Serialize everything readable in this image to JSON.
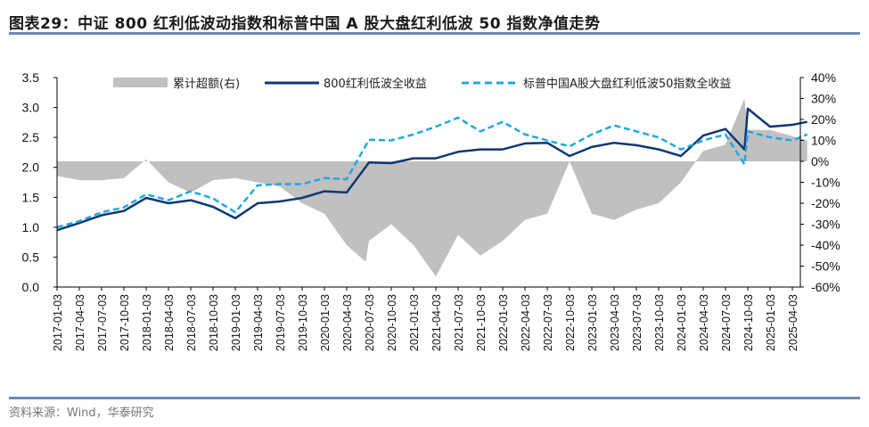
{
  "title": "图表29：中证 800 红利低波动指数和标普中国 A 股大盘红利低波 50 指数净值走势",
  "source": "资料来源：Wind，华泰研究",
  "colors": {
    "excess": "#c0c0c0",
    "csi800": "#0d3874",
    "sp50": "#1fa8e6",
    "rule": "#6a8ab3"
  },
  "chart_data": {
    "type": "line",
    "title": "",
    "legend_position": "top",
    "y_left": {
      "lim": [
        0,
        3.5
      ],
      "ticks": [
        "0.0",
        "0.5",
        "1.0",
        "1.5",
        "2.0",
        "2.5",
        "3.0",
        "3.5"
      ]
    },
    "y_right": {
      "lim": [
        -60,
        40
      ],
      "ticks": [
        "-60%",
        "-50%",
        "-40%",
        "-30%",
        "-20%",
        "-10%",
        "0%",
        "10%",
        "20%",
        "30%",
        "40%"
      ]
    },
    "x_ticks": [
      "2017-01-03",
      "2017-04-03",
      "2017-07-03",
      "2017-10-03",
      "2018-01-03",
      "2018-04-03",
      "2018-07-03",
      "2018-10-03",
      "2019-01-03",
      "2019-04-03",
      "2019-07-03",
      "2019-10-03",
      "2020-01-03",
      "2020-04-03",
      "2020-07-03",
      "2020-10-03",
      "2021-01-03",
      "2021-04-03",
      "2021-07-03",
      "2021-10-03",
      "2022-01-03",
      "2022-04-03",
      "2022-07-03",
      "2022-10-03",
      "2023-01-03",
      "2023-04-03",
      "2023-07-03",
      "2023-10-03",
      "2024-01-03",
      "2024-04-03",
      "2024-07-03",
      "2024-10-03",
      "2025-01-03",
      "2025-04-03"
    ],
    "series": [
      {
        "name": "累计超额(右)",
        "type": "area",
        "axis": "right",
        "x": [
          "2017-01-03",
          "2017-04-03",
          "2017-07-03",
          "2017-10-03",
          "2018-01-03",
          "2018-04-03",
          "2018-07-03",
          "2018-10-03",
          "2019-01-03",
          "2019-04-03",
          "2019-07-03",
          "2019-10-03",
          "2020-01-03",
          "2020-04-03",
          "2020-06-20",
          "2020-07-03",
          "2020-10-03",
          "2021-01-03",
          "2021-04-03",
          "2021-07-03",
          "2021-10-03",
          "2022-01-03",
          "2022-04-03",
          "2022-07-03",
          "2022-10-03",
          "2023-01-03",
          "2023-04-03",
          "2023-07-03",
          "2023-10-03",
          "2024-01-03",
          "2024-04-03",
          "2024-07-03",
          "2024-09-20",
          "2024-10-03",
          "2025-01-03",
          "2025-04-03",
          "2025-06-03"
        ],
        "values": [
          -7,
          -9,
          -9,
          -8,
          1,
          -10,
          -15,
          -9,
          -8,
          -10,
          -12,
          -20,
          -25,
          -40,
          -48,
          -38,
          -30,
          -40,
          -55,
          -35,
          -45,
          -38,
          -28,
          -25,
          0,
          -25,
          -28,
          -23,
          -20,
          -10,
          5,
          8,
          30,
          15,
          15,
          12,
          10
        ]
      },
      {
        "name": "800红利低波全收益",
        "type": "line",
        "axis": "left",
        "x": [
          "2017-01-03",
          "2017-04-03",
          "2017-07-03",
          "2017-10-03",
          "2018-01-03",
          "2018-04-03",
          "2018-07-03",
          "2018-10-03",
          "2019-01-03",
          "2019-04-03",
          "2019-07-03",
          "2019-10-03",
          "2020-01-03",
          "2020-04-03",
          "2020-07-03",
          "2020-10-03",
          "2021-01-03",
          "2021-04-03",
          "2021-07-03",
          "2021-10-03",
          "2022-01-03",
          "2022-04-03",
          "2022-07-03",
          "2022-10-03",
          "2023-01-03",
          "2023-04-03",
          "2023-07-03",
          "2023-10-03",
          "2024-01-03",
          "2024-04-03",
          "2024-07-03",
          "2024-09-20",
          "2024-10-03",
          "2025-01-03",
          "2025-04-03",
          "2025-06-03"
        ],
        "values": [
          0.95,
          1.07,
          1.2,
          1.27,
          1.49,
          1.4,
          1.45,
          1.34,
          1.15,
          1.4,
          1.43,
          1.49,
          1.6,
          1.58,
          2.08,
          2.07,
          2.15,
          2.15,
          2.26,
          2.3,
          2.3,
          2.4,
          2.41,
          2.19,
          2.34,
          2.41,
          2.37,
          2.3,
          2.19,
          2.53,
          2.64,
          2.3,
          2.98,
          2.68,
          2.71,
          2.76
        ]
      },
      {
        "name": "标普中国A股大盘红利低波50指数全收益",
        "type": "dashed",
        "axis": "left",
        "x": [
          "2017-01-03",
          "2017-04-03",
          "2017-07-03",
          "2017-10-03",
          "2018-01-03",
          "2018-04-03",
          "2018-07-03",
          "2018-10-03",
          "2019-01-03",
          "2019-04-03",
          "2019-07-03",
          "2019-10-03",
          "2020-01-03",
          "2020-04-03",
          "2020-07-03",
          "2020-10-03",
          "2021-01-03",
          "2021-04-03",
          "2021-07-03",
          "2021-10-03",
          "2022-01-03",
          "2022-04-03",
          "2022-07-03",
          "2022-10-03",
          "2023-01-03",
          "2023-04-03",
          "2023-07-03",
          "2023-10-03",
          "2024-01-03",
          "2024-04-03",
          "2024-07-03",
          "2024-09-20",
          "2024-10-03",
          "2025-01-03",
          "2025-04-03",
          "2025-06-03"
        ],
        "values": [
          1.0,
          1.1,
          1.25,
          1.33,
          1.55,
          1.45,
          1.6,
          1.48,
          1.25,
          1.7,
          1.72,
          1.72,
          1.82,
          1.8,
          2.46,
          2.45,
          2.55,
          2.68,
          2.83,
          2.6,
          2.76,
          2.55,
          2.45,
          2.35,
          2.55,
          2.7,
          2.6,
          2.5,
          2.3,
          2.45,
          2.55,
          2.05,
          2.6,
          2.5,
          2.45,
          2.55
        ]
      }
    ]
  }
}
